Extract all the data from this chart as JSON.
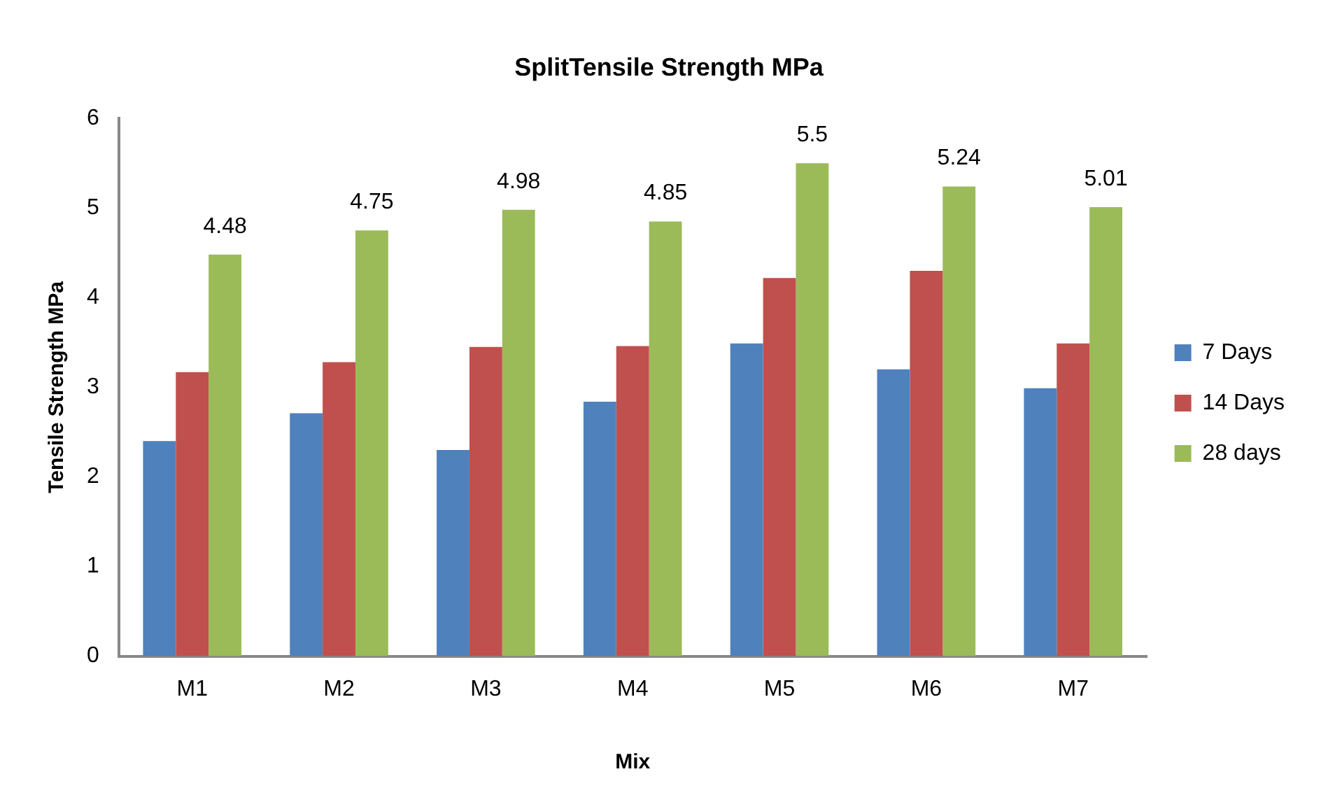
{
  "chart_data": {
    "type": "bar",
    "title": "SplitTensile Strength MPa",
    "xlabel": "Mix",
    "ylabel": "Tensile Strength MPa",
    "categories": [
      "M1",
      "M2",
      "M3",
      "M4",
      "M5",
      "M6",
      "M7"
    ],
    "series": [
      {
        "name": "7 Days",
        "color": "#4f81bd",
        "values": [
          2.4,
          2.71,
          2.3,
          2.84,
          3.49,
          3.2,
          2.99
        ]
      },
      {
        "name": "14 Days",
        "color": "#c0504d",
        "values": [
          3.17,
          3.28,
          3.45,
          3.46,
          4.22,
          4.3,
          3.49
        ]
      },
      {
        "name": "28 days",
        "color": "#9bbb59",
        "values": [
          4.48,
          4.75,
          4.98,
          4.85,
          5.5,
          5.24,
          5.01
        ],
        "value_labels": [
          "4.48",
          "4.75",
          "4.98",
          "4.85",
          "5.5",
          "5.24",
          "5.01"
        ]
      }
    ],
    "ylim": [
      0,
      6
    ],
    "yticks": [
      0,
      1,
      2,
      3,
      4,
      5,
      6
    ],
    "grid": false,
    "legend": "right"
  }
}
